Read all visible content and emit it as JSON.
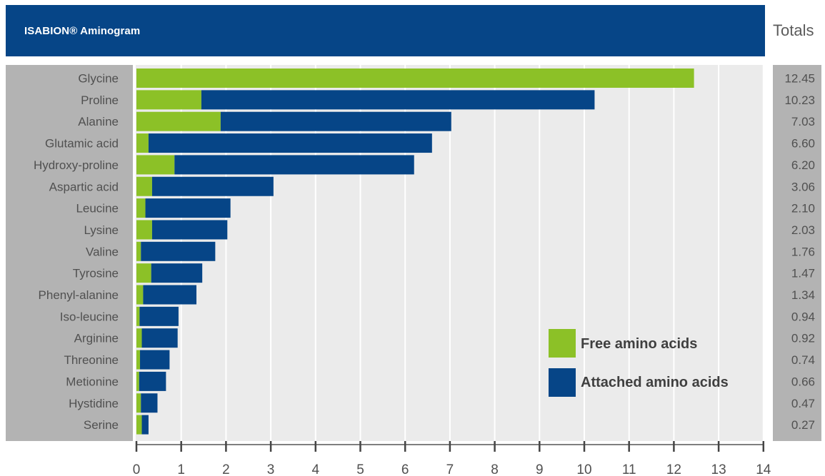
{
  "chart_data": {
    "type": "bar",
    "orientation": "horizontal",
    "stacked": true,
    "title": "ISABION® Aminogram",
    "totals_header": "Totals",
    "categories": [
      "Glycine",
      "Proline",
      "Alanine",
      "Glutamic acid",
      "Hydroxy-proline",
      "Aspartic acid",
      "Leucine",
      "Lysine",
      "Valine",
      "Tyrosine",
      "Phenyl-alanine",
      "Iso-leucine",
      "Arginine",
      "Threonine",
      "Metionine",
      "Hystidine",
      "Serine"
    ],
    "series": [
      {
        "name": "Free amino acids",
        "color": "#8cc127",
        "values": [
          12.45,
          1.45,
          1.88,
          0.27,
          0.85,
          0.35,
          0.2,
          0.35,
          0.1,
          0.33,
          0.15,
          0.07,
          0.12,
          0.08,
          0.06,
          0.1,
          0.12
        ]
      },
      {
        "name": "Attached amino acids",
        "color": "#064587",
        "values": [
          0,
          8.78,
          5.15,
          6.33,
          5.35,
          2.71,
          1.9,
          1.68,
          1.66,
          1.14,
          1.19,
          0.87,
          0.8,
          0.66,
          0.6,
          0.37,
          0.15
        ]
      }
    ],
    "totals": [
      "12.45",
      "10.23",
      "7.03",
      "6.60",
      "6.20",
      "3.06",
      "2.10",
      "2.03",
      "1.76",
      "1.47",
      "1.34",
      "0.94",
      "0.92",
      "0.74",
      "0.66",
      "0.47",
      "0.27"
    ],
    "xlim": [
      0,
      14
    ],
    "xticks": [
      "0",
      "1",
      "2",
      "3",
      "4",
      "5",
      "6",
      "7",
      "8",
      "9",
      "10",
      "11",
      "12",
      "13",
      "14"
    ],
    "grid": true,
    "legend_position": "bottom-right"
  },
  "colors": {
    "title_bar": "#064587",
    "free": "#8cc127",
    "attached": "#064587",
    "label_panel": "#b3b3b3",
    "plot_background": "#ebebeb"
  }
}
